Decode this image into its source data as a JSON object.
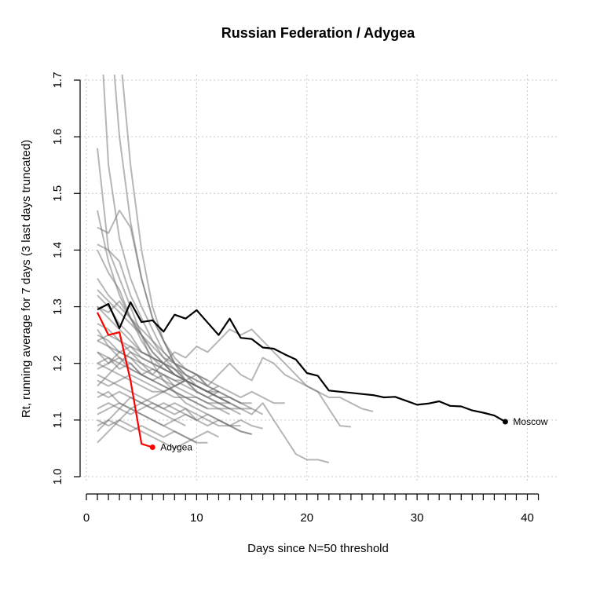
{
  "chart_data": {
    "type": "line",
    "title": "Russian Federation / Adygea",
    "xlabel": "Days since N=50 threshold",
    "ylabel": "Rt, running average for 7 days (3 last days truncated)",
    "xlim": [
      0,
      41
    ],
    "ylim": [
      0.98,
      1.72
    ],
    "xticks": [
      0,
      10,
      20,
      30,
      40
    ],
    "yticks": [
      1.0,
      1.1,
      1.2,
      1.3,
      1.4,
      1.5,
      1.6,
      1.7
    ],
    "grid": true,
    "colors": {
      "highlight": "#ff0000",
      "reference": "#000000",
      "background_series": "#6e6e6e"
    },
    "highlight_series": {
      "name": "Adygea",
      "x": [
        1,
        2,
        3,
        4,
        5,
        6
      ],
      "y": [
        1.29,
        1.25,
        1.255,
        1.17,
        1.058,
        1.052
      ]
    },
    "reference_series": {
      "name": "Moscow",
      "x": [
        1,
        2,
        3,
        4,
        5,
        6,
        7,
        8,
        9,
        10,
        11,
        12,
        13,
        14,
        15,
        16,
        17,
        18,
        19,
        20,
        21,
        22,
        23,
        24,
        25,
        26,
        27,
        28,
        29,
        30,
        31,
        32,
        33,
        34,
        35,
        36,
        37,
        38
      ],
      "y": [
        1.295,
        1.305,
        1.262,
        1.308,
        1.273,
        1.276,
        1.256,
        1.286,
        1.279,
        1.294,
        1.272,
        1.25,
        1.279,
        1.245,
        1.243,
        1.228,
        1.226,
        1.216,
        1.207,
        1.183,
        1.178,
        1.152,
        1.15,
        1.148,
        1.146,
        1.144,
        1.14,
        1.141,
        1.134,
        1.127,
        1.129,
        1.133,
        1.125,
        1.124,
        1.117,
        1.113,
        1.108,
        1.097
      ]
    },
    "background_series": [
      {
        "x": [
          1,
          2,
          3,
          4,
          5,
          6,
          7,
          8,
          9,
          10,
          11,
          12,
          13,
          14,
          15,
          16,
          17,
          18,
          19,
          20,
          21,
          22,
          23,
          24,
          25,
          26
        ],
        "y": [
          1.3,
          1.28,
          1.26,
          1.24,
          1.22,
          1.21,
          1.2,
          1.22,
          1.21,
          1.23,
          1.22,
          1.24,
          1.26,
          1.25,
          1.26,
          1.24,
          1.22,
          1.2,
          1.18,
          1.16,
          1.15,
          1.14,
          1.14,
          1.13,
          1.12,
          1.115
        ]
      },
      {
        "x": [
          1,
          2,
          3,
          4,
          5,
          6,
          7,
          8,
          9,
          10,
          11,
          12,
          13,
          14,
          15,
          16,
          17,
          18,
          19,
          20,
          21,
          22
        ],
        "y": [
          1.22,
          1.21,
          1.2,
          1.19,
          1.18,
          1.17,
          1.16,
          1.15,
          1.14,
          1.14,
          1.13,
          1.13,
          1.12,
          1.12,
          1.11,
          1.13,
          1.1,
          1.07,
          1.04,
          1.03,
          1.03,
          1.025
        ]
      },
      {
        "x": [
          1,
          2,
          3,
          4,
          5,
          6,
          7,
          8,
          9,
          10,
          11,
          12,
          13,
          14,
          15,
          16,
          17,
          18,
          19,
          20,
          21,
          22,
          23,
          24
        ],
        "y": [
          1.25,
          1.24,
          1.22,
          1.21,
          1.19,
          1.18,
          1.2,
          1.19,
          1.17,
          1.18,
          1.16,
          1.18,
          1.2,
          1.18,
          1.17,
          1.21,
          1.2,
          1.18,
          1.17,
          1.16,
          1.15,
          1.12,
          1.09,
          1.088
        ]
      },
      {
        "x": [
          1,
          2,
          3,
          4,
          5,
          6,
          7,
          8,
          9,
          10,
          11,
          12,
          13,
          14,
          15,
          16
        ],
        "y": [
          1.18,
          1.17,
          1.16,
          1.15,
          1.14,
          1.13,
          1.12,
          1.13,
          1.12,
          1.11,
          1.1,
          1.09,
          1.09,
          1.1,
          1.09,
          1.085
        ]
      },
      {
        "x": [
          1,
          2,
          3,
          4,
          5,
          6,
          7,
          8,
          9,
          10,
          11,
          12,
          13,
          14,
          15
        ],
        "y": [
          1.58,
          1.4,
          1.35,
          1.3,
          1.25,
          1.2,
          1.17,
          1.15,
          1.13,
          1.12,
          1.11,
          1.1,
          1.09,
          1.08,
          1.075
        ]
      },
      {
        "x": [
          1,
          2,
          3,
          4,
          5,
          6,
          7,
          8,
          9,
          10,
          11,
          12,
          13,
          14
        ],
        "y": [
          1.47,
          1.38,
          1.32,
          1.28,
          1.25,
          1.22,
          1.2,
          1.18,
          1.17,
          1.16,
          1.15,
          1.14,
          1.13,
          1.12
        ]
      },
      {
        "x": [
          1.5,
          2,
          3,
          4,
          5,
          6,
          7,
          8,
          9,
          10,
          11,
          12,
          13,
          14,
          15
        ],
        "y": [
          1.72,
          1.55,
          1.42,
          1.35,
          1.3,
          1.26,
          1.22,
          1.2,
          1.19,
          1.18,
          1.16,
          1.15,
          1.14,
          1.13,
          1.12
        ]
      },
      {
        "x": [
          2.5,
          3,
          4,
          5,
          6,
          7,
          8,
          9,
          10,
          11,
          12,
          13,
          14
        ],
        "y": [
          1.72,
          1.6,
          1.45,
          1.35,
          1.28,
          1.24,
          1.2,
          1.17,
          1.15,
          1.14,
          1.13,
          1.12,
          1.11
        ]
      },
      {
        "x": [
          3.2,
          4,
          5,
          6,
          7,
          8,
          9,
          10,
          11,
          12,
          13
        ],
        "y": [
          1.72,
          1.55,
          1.4,
          1.3,
          1.24,
          1.2,
          1.18,
          1.16,
          1.15,
          1.14,
          1.13
        ]
      },
      {
        "x": [
          1,
          2,
          3,
          4,
          5,
          6,
          7,
          8,
          9,
          10,
          11,
          12
        ],
        "y": [
          1.41,
          1.4,
          1.38,
          1.32,
          1.28,
          1.24,
          1.21,
          1.19,
          1.17,
          1.16,
          1.15,
          1.14
        ]
      },
      {
        "x": [
          1,
          2,
          3,
          4,
          5,
          6,
          7,
          8,
          9,
          10,
          11,
          12,
          13
        ],
        "y": [
          1.2,
          1.19,
          1.18,
          1.17,
          1.16,
          1.15,
          1.15,
          1.14,
          1.14,
          1.13,
          1.12,
          1.12,
          1.11
        ]
      },
      {
        "x": [
          1,
          2,
          3,
          4,
          5,
          6,
          7,
          8,
          9,
          10,
          11,
          12,
          13,
          14
        ],
        "y": [
          1.15,
          1.14,
          1.15,
          1.14,
          1.13,
          1.12,
          1.13,
          1.12,
          1.11,
          1.1,
          1.11,
          1.1,
          1.09,
          1.09
        ]
      },
      {
        "x": [
          1,
          2,
          3,
          4,
          5,
          6,
          7,
          8,
          9,
          10,
          11
        ],
        "y": [
          1.26,
          1.23,
          1.21,
          1.2,
          1.18,
          1.17,
          1.16,
          1.15,
          1.14,
          1.13,
          1.12
        ]
      },
      {
        "x": [
          1,
          2,
          3,
          4,
          5,
          6,
          7,
          8,
          9,
          10
        ],
        "y": [
          1.35,
          1.32,
          1.3,
          1.28,
          1.25,
          1.22,
          1.2,
          1.18,
          1.17,
          1.16
        ]
      },
      {
        "x": [
          1,
          2,
          3,
          4,
          5,
          6,
          7,
          8,
          9,
          10,
          11,
          12
        ],
        "y": [
          1.1,
          1.09,
          1.1,
          1.09,
          1.08,
          1.07,
          1.06,
          1.05,
          1.06,
          1.07,
          1.08,
          1.07
        ]
      },
      {
        "x": [
          1,
          2,
          3,
          4,
          5,
          6,
          7,
          8,
          9,
          10,
          11,
          12,
          13
        ],
        "y": [
          1.17,
          1.16,
          1.17,
          1.18,
          1.17,
          1.16,
          1.15,
          1.16,
          1.17,
          1.16,
          1.15,
          1.14,
          1.13
        ]
      },
      {
        "x": [
          1,
          2,
          3,
          4,
          5,
          6,
          7,
          8,
          9,
          10,
          11
        ],
        "y": [
          1.44,
          1.43,
          1.47,
          1.44,
          1.35,
          1.28,
          1.24,
          1.21,
          1.19,
          1.18,
          1.17
        ]
      },
      {
        "x": [
          1,
          2,
          3,
          4,
          5,
          6,
          7,
          8,
          9,
          10,
          11,
          12,
          13,
          14,
          15
        ],
        "y": [
          1.08,
          1.1,
          1.12,
          1.11,
          1.12,
          1.13,
          1.12,
          1.11,
          1.12,
          1.1,
          1.09,
          1.1,
          1.09,
          1.08,
          1.075
        ]
      },
      {
        "x": [
          1,
          2,
          3,
          4,
          5,
          6,
          7,
          8,
          9,
          10,
          11,
          12,
          13,
          14,
          15,
          16,
          17,
          18
        ],
        "y": [
          1.24,
          1.23,
          1.22,
          1.21,
          1.2,
          1.19,
          1.18,
          1.17,
          1.17,
          1.16,
          1.15,
          1.16,
          1.15,
          1.14,
          1.15,
          1.14,
          1.13,
          1.13
        ]
      },
      {
        "x": [
          1,
          2,
          3,
          4,
          5,
          6,
          7,
          8,
          9,
          10,
          11,
          12,
          13,
          14,
          15
        ],
        "y": [
          1.32,
          1.3,
          1.27,
          1.25,
          1.22,
          1.21,
          1.19,
          1.18,
          1.17,
          1.16,
          1.15,
          1.14,
          1.14,
          1.13,
          1.13
        ]
      },
      {
        "x": [
          1,
          2,
          3,
          4,
          5,
          6,
          7,
          8,
          9,
          10,
          11,
          12,
          13,
          14,
          15,
          16
        ],
        "y": [
          1.06,
          1.08,
          1.1,
          1.12,
          1.13,
          1.14,
          1.15,
          1.16,
          1.17,
          1.16,
          1.15,
          1.14,
          1.13,
          1.12,
          1.12,
          1.11
        ]
      },
      {
        "x": [
          1,
          2,
          3,
          4,
          5,
          6,
          7,
          8,
          9,
          10
        ],
        "y": [
          1.12,
          1.13,
          1.12,
          1.14,
          1.13,
          1.12,
          1.11,
          1.1,
          1.11,
          1.1
        ]
      },
      {
        "x": [
          1,
          2,
          3,
          4,
          5,
          6,
          7,
          8,
          9
        ],
        "y": [
          1.4,
          1.36,
          1.33,
          1.28,
          1.24,
          1.21,
          1.2,
          1.18,
          1.17
        ]
      },
      {
        "x": [
          1,
          2,
          3,
          4,
          5,
          6,
          7,
          8,
          9,
          10,
          11,
          12
        ],
        "y": [
          1.19,
          1.2,
          1.22,
          1.23,
          1.21,
          1.2,
          1.19,
          1.18,
          1.17,
          1.16,
          1.15,
          1.15
        ]
      },
      {
        "x": [
          1,
          2,
          3,
          4,
          5,
          6,
          7,
          8,
          9,
          10,
          11,
          12,
          13
        ],
        "y": [
          1.27,
          1.26,
          1.24,
          1.22,
          1.2,
          1.18,
          1.17,
          1.16,
          1.15,
          1.14,
          1.13,
          1.12,
          1.12
        ]
      },
      {
        "x": [
          1,
          2,
          3,
          4,
          5,
          6,
          7,
          8,
          9,
          10,
          11
        ],
        "y": [
          1.14,
          1.15,
          1.13,
          1.12,
          1.11,
          1.1,
          1.09,
          1.08,
          1.07,
          1.06,
          1.06
        ]
      },
      {
        "x": [
          1,
          2,
          3,
          4,
          5,
          6,
          7,
          8,
          9,
          10
        ],
        "y": [
          1.16,
          1.18,
          1.2,
          1.22,
          1.21,
          1.2,
          1.19,
          1.18,
          1.17,
          1.16
        ]
      },
      {
        "x": [
          1,
          2,
          3,
          4,
          5,
          6,
          7,
          8,
          9,
          10,
          11,
          12,
          13
        ],
        "y": [
          1.22,
          1.2,
          1.21,
          1.19,
          1.18,
          1.19,
          1.18,
          1.17,
          1.16,
          1.15,
          1.14,
          1.13,
          1.13
        ]
      },
      {
        "x": [
          1,
          2,
          3,
          4,
          5,
          6,
          7,
          8,
          9,
          10,
          11,
          12
        ],
        "y": [
          1.3,
          1.29,
          1.31,
          1.28,
          1.26,
          1.24,
          1.22,
          1.2,
          1.19,
          1.18,
          1.17,
          1.16
        ]
      },
      {
        "x": [
          1,
          2,
          3,
          4,
          5,
          6,
          7,
          8,
          9,
          10
        ],
        "y": [
          1.09,
          1.1,
          1.09,
          1.08,
          1.09,
          1.08,
          1.07,
          1.08,
          1.07,
          1.06
        ]
      },
      {
        "x": [
          1,
          2,
          3,
          4,
          5,
          6,
          7,
          8,
          9,
          10,
          11,
          12,
          13,
          14
        ],
        "y": [
          1.2,
          1.21,
          1.19,
          1.2,
          1.18,
          1.17,
          1.18,
          1.16,
          1.17,
          1.15,
          1.14,
          1.15,
          1.14,
          1.13
        ]
      },
      {
        "x": [
          1,
          2,
          3,
          4,
          5,
          6,
          7,
          8,
          9,
          10,
          11
        ],
        "y": [
          1.33,
          1.31,
          1.29,
          1.27,
          1.25,
          1.23,
          1.21,
          1.2,
          1.18,
          1.17,
          1.16
        ]
      },
      {
        "x": [
          1,
          2,
          3,
          4,
          5,
          6,
          7,
          8,
          9
        ],
        "y": [
          1.11,
          1.12,
          1.13,
          1.12,
          1.11,
          1.1,
          1.09,
          1.1,
          1.09
        ]
      },
      {
        "x": [
          1,
          2,
          3,
          4,
          5,
          6,
          7,
          8,
          9,
          10,
          11,
          12
        ],
        "y": [
          1.24,
          1.25,
          1.24,
          1.23,
          1.22,
          1.21,
          1.2,
          1.19,
          1.18,
          1.17,
          1.16,
          1.15
        ]
      }
    ],
    "annotations": [
      {
        "text": "Adygea",
        "x": 6,
        "y": 1.052
      },
      {
        "text": "Moscow",
        "x": 38,
        "y": 1.097
      }
    ]
  }
}
